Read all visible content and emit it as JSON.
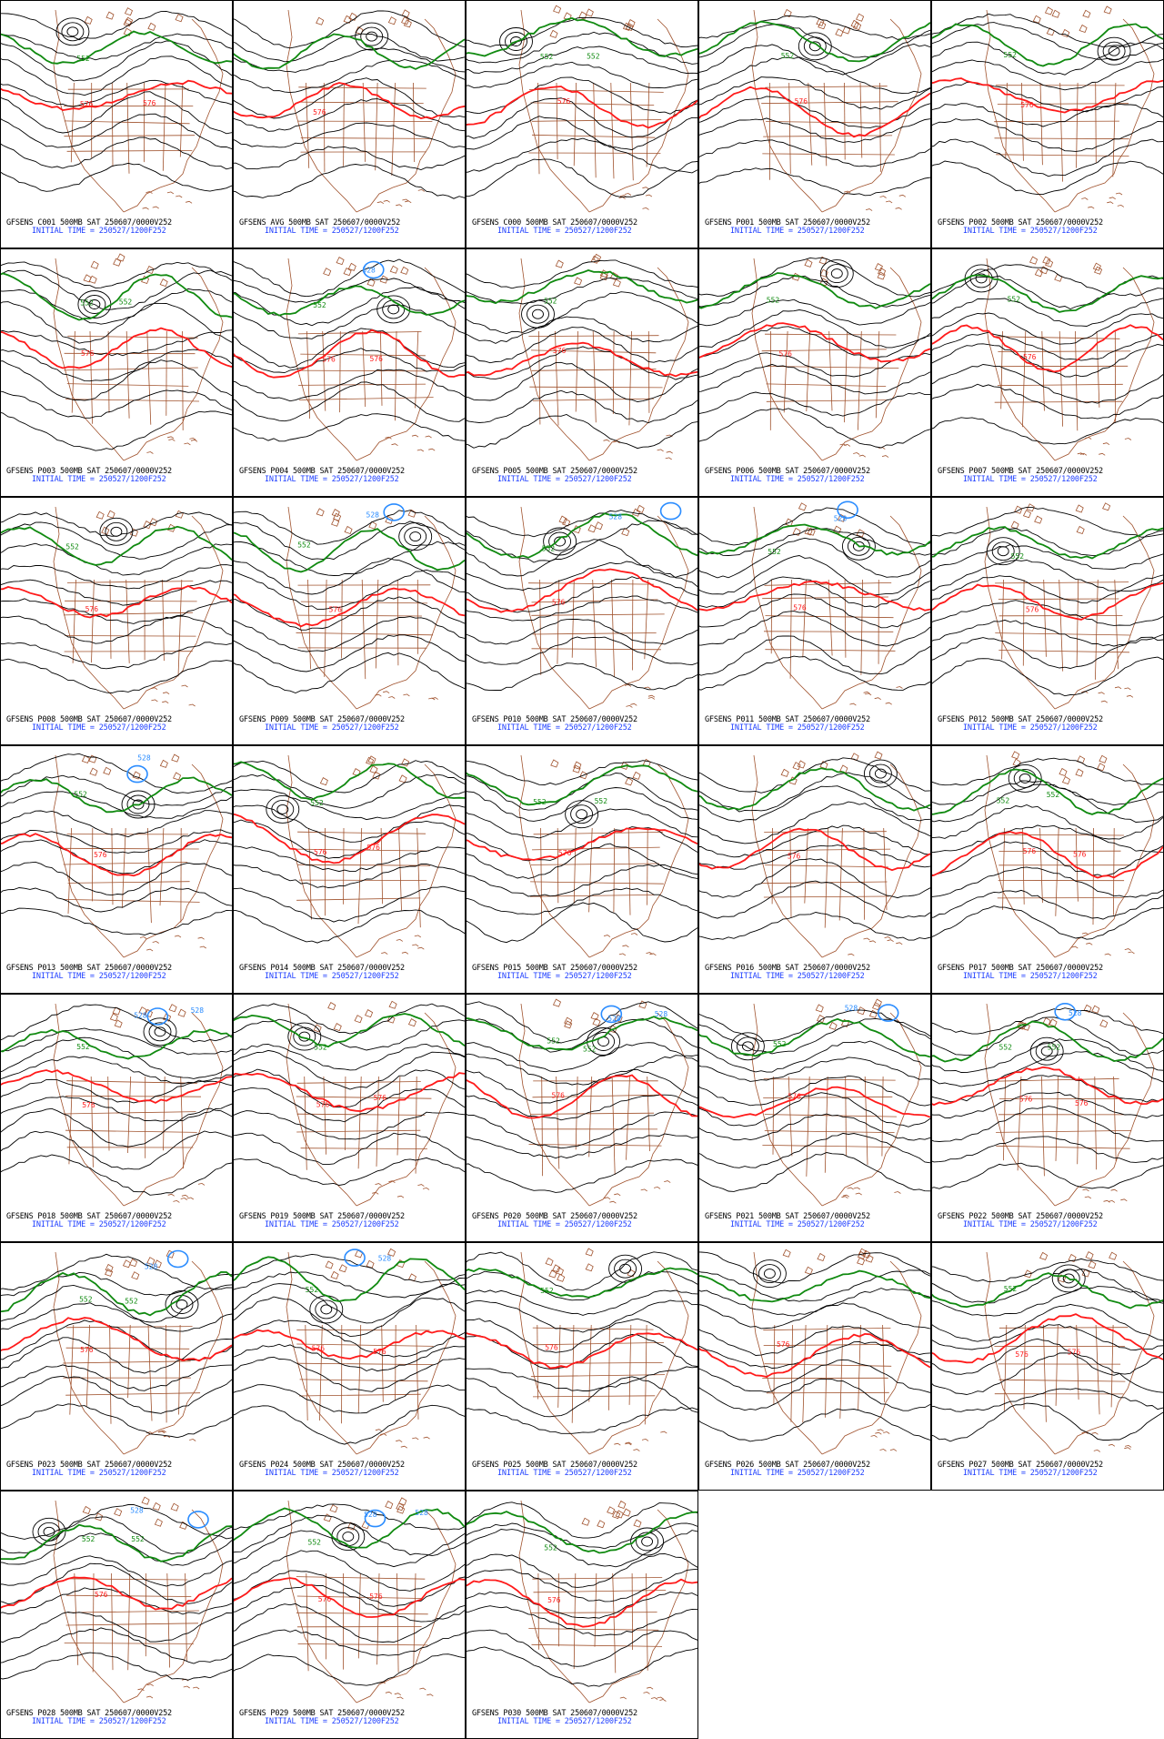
{
  "colors": {
    "contour": "#000000",
    "geography": "#a0522d",
    "contour_552": "#108a10",
    "contour_576": "#ff1a1a",
    "contour_low": "#2a8cff",
    "caption_time": "#1f3fff"
  },
  "panels": [
    {
      "caption": "GFSENS C001 500MB SAT 250607/0000V252",
      "init": "INITIAL TIME = 250527/1200F252",
      "labels_576": [
        "576",
        "576"
      ],
      "labels_552": [
        "552"
      ],
      "labels_low": []
    },
    {
      "caption": "GFSENS AVG 500MB SAT 250607/0000V252",
      "init": "INITIAL TIME = 250527/1200F252",
      "labels_576": [
        "576"
      ],
      "labels_552": [],
      "labels_low": []
    },
    {
      "caption": "GFSENS C000 500MB SAT 250607/0000V252",
      "init": "INITIAL TIME = 250527/1200F252",
      "labels_576": [
        "576"
      ],
      "labels_552": [
        "552",
        "552"
      ],
      "labels_low": []
    },
    {
      "caption": "GFSENS P001 500MB SAT 250607/0000V252",
      "init": "INITIAL TIME = 250527/1200F252",
      "labels_576": [
        "576"
      ],
      "labels_552": [
        "552"
      ],
      "labels_low": []
    },
    {
      "caption": "GFSENS P002 500MB SAT 250607/0000V252",
      "init": "INITIAL TIME = 250527/1200F252",
      "labels_576": [
        "576"
      ],
      "labels_552": [
        "552"
      ],
      "labels_low": []
    },
    {
      "caption": "GFSENS P003 500MB SAT 250607/0000V252",
      "init": "INITIAL TIME = 250527/1200F252",
      "labels_576": [
        "576"
      ],
      "labels_552": [
        "552",
        "552"
      ],
      "labels_low": []
    },
    {
      "caption": "GFSENS P004 500MB SAT 250607/0000V252",
      "init": "INITIAL TIME = 250527/1200F252",
      "labels_576": [
        "576",
        "576"
      ],
      "labels_552": [
        "552"
      ],
      "labels_low": [
        "528"
      ]
    },
    {
      "caption": "GFSENS P005 500MB SAT 250607/0000V252",
      "init": "INITIAL TIME = 250527/1200F252",
      "labels_576": [
        "576"
      ],
      "labels_552": [
        "552"
      ],
      "labels_low": []
    },
    {
      "caption": "GFSENS P006 500MB SAT 250607/0000V252",
      "init": "INITIAL TIME = 250527/1200F252",
      "labels_576": [
        "576"
      ],
      "labels_552": [
        "552"
      ],
      "labels_low": []
    },
    {
      "caption": "GFSENS P007 500MB SAT 250607/0000V252",
      "init": "INITIAL TIME = 250527/1200F252",
      "labels_576": [
        "576"
      ],
      "labels_552": [
        "552"
      ],
      "labels_low": []
    },
    {
      "caption": "GFSENS P008 500MB SAT 250607/0000V252",
      "init": "INITIAL TIME = 250527/1200F252",
      "labels_576": [
        "576"
      ],
      "labels_552": [
        "552"
      ],
      "labels_low": []
    },
    {
      "caption": "GFSENS P009 500MB SAT 250607/0000V252",
      "init": "INITIAL TIME = 250527/1200F252",
      "labels_576": [
        "576"
      ],
      "labels_552": [
        "552"
      ],
      "labels_low": [
        "528"
      ]
    },
    {
      "caption": "GFSENS P010 500MB SAT 250607/0000V252",
      "init": "INITIAL TIME = 250527/1200F252",
      "labels_576": [
        "576"
      ],
      "labels_552": [
        "552"
      ],
      "labels_low": [
        "528"
      ]
    },
    {
      "caption": "GFSENS P011 500MB SAT 250607/0000V252",
      "init": "INITIAL TIME = 250527/1200F252",
      "labels_576": [
        "576"
      ],
      "labels_552": [
        "552"
      ],
      "labels_low": [
        "528"
      ]
    },
    {
      "caption": "GFSENS P012 500MB SAT 250607/0000V252",
      "init": "INITIAL TIME = 250527/1200F252",
      "labels_576": [
        "576"
      ],
      "labels_552": [
        "552"
      ],
      "labels_low": []
    },
    {
      "caption": "GFSENS P013 500MB SAT 250607/0000V252",
      "init": "INITIAL TIME = 250527/1200F252",
      "labels_576": [
        "576"
      ],
      "labels_552": [
        "552"
      ],
      "labels_low": [
        "528"
      ]
    },
    {
      "caption": "GFSENS P014 500MB SAT 250607/0000V252",
      "init": "INITIAL TIME = 250527/1200F252",
      "labels_576": [
        "576",
        "576"
      ],
      "labels_552": [
        "552"
      ],
      "labels_low": []
    },
    {
      "caption": "GFSENS P015 500MB SAT 250607/0000V252",
      "init": "INITIAL TIME = 250527/1200F252",
      "labels_576": [
        "576"
      ],
      "labels_552": [
        "552",
        "552"
      ],
      "labels_low": []
    },
    {
      "caption": "GFSENS P016 500MB SAT 250607/0000V252",
      "init": "INITIAL TIME = 250527/1200F252",
      "labels_576": [
        "576"
      ],
      "labels_552": [],
      "labels_low": []
    },
    {
      "caption": "GFSENS P017 500MB SAT 250607/0000V252",
      "init": "INITIAL TIME = 250527/1200F252",
      "labels_576": [
        "576",
        "576"
      ],
      "labels_552": [
        "552",
        "552"
      ],
      "labels_low": []
    },
    {
      "caption": "GFSENS P018 500MB SAT 250607/0000V252",
      "init": "INITIAL TIME = 250527/1200F252",
      "labels_576": [
        "576"
      ],
      "labels_552": [
        "552"
      ],
      "labels_low": [
        "528",
        "528"
      ]
    },
    {
      "caption": "GFSENS P019 500MB SAT 250607/0000V252",
      "init": "INITIAL TIME = 250527/1200F252",
      "labels_576": [
        "576",
        "576"
      ],
      "labels_552": [
        "552"
      ],
      "labels_low": []
    },
    {
      "caption": "GFSENS P020 500MB SAT 250607/0000V252",
      "init": "INITIAL TIME = 250527/1200F252",
      "labels_576": [
        "576"
      ],
      "labels_552": [
        "552",
        "552"
      ],
      "labels_low": [
        "528",
        "528"
      ]
    },
    {
      "caption": "GFSENS P021 500MB SAT 250607/0000V252",
      "init": "INITIAL TIME = 250527/1200F252",
      "labels_576": [
        "576"
      ],
      "labels_552": [
        "552"
      ],
      "labels_low": [
        "528"
      ]
    },
    {
      "caption": "GFSENS P022 500MB SAT 250607/0000V252",
      "init": "INITIAL TIME = 250527/1200F252",
      "labels_576": [
        "576",
        "576"
      ],
      "labels_552": [
        "552",
        "552"
      ],
      "labels_low": [
        "528"
      ]
    },
    {
      "caption": "GFSENS P023 500MB SAT 250607/0000V252",
      "init": "INITIAL TIME = 250527/1200F252",
      "labels_576": [
        "576"
      ],
      "labels_552": [
        "552",
        "552"
      ],
      "labels_low": [
        "528"
      ]
    },
    {
      "caption": "GFSENS P024 500MB SAT 250607/0000V252",
      "init": "INITIAL TIME = 250527/1200F252",
      "labels_576": [
        "576",
        "576"
      ],
      "labels_552": [
        "552"
      ],
      "labels_low": [
        "528"
      ]
    },
    {
      "caption": "GFSENS P025 500MB SAT 250607/0000V252",
      "init": "INITIAL TIME = 250527/1200F252",
      "labels_576": [
        "576"
      ],
      "labels_552": [
        "552"
      ],
      "labels_low": []
    },
    {
      "caption": "GFSENS P026 500MB SAT 250607/0000V252",
      "init": "INITIAL TIME = 250527/1200F252",
      "labels_576": [
        "576"
      ],
      "labels_552": [],
      "labels_low": []
    },
    {
      "caption": "GFSENS P027 500MB SAT 250607/0000V252",
      "init": "INITIAL TIME = 250527/1200F252",
      "labels_576": [
        "576",
        "576"
      ],
      "labels_552": [
        "552"
      ],
      "labels_low": []
    },
    {
      "caption": "GFSENS P028 500MB SAT 250607/0000V252",
      "init": "INITIAL TIME = 250527/1200F252",
      "labels_576": [
        "576"
      ],
      "labels_552": [
        "552",
        "552"
      ],
      "labels_low": [
        "528"
      ]
    },
    {
      "caption": "GFSENS P029 500MB SAT 250607/0000V252",
      "init": "INITIAL TIME = 250527/1200F252",
      "labels_576": [
        "576",
        "576"
      ],
      "labels_552": [
        "552"
      ],
      "labels_low": [
        "528",
        "528"
      ]
    },
    {
      "caption": "GFSENS P030 500MB SAT 250607/0000V252",
      "init": "INITIAL TIME = 250527/1200F252",
      "labels_576": [
        "576"
      ],
      "labels_552": [
        "552"
      ],
      "labels_low": []
    }
  ]
}
